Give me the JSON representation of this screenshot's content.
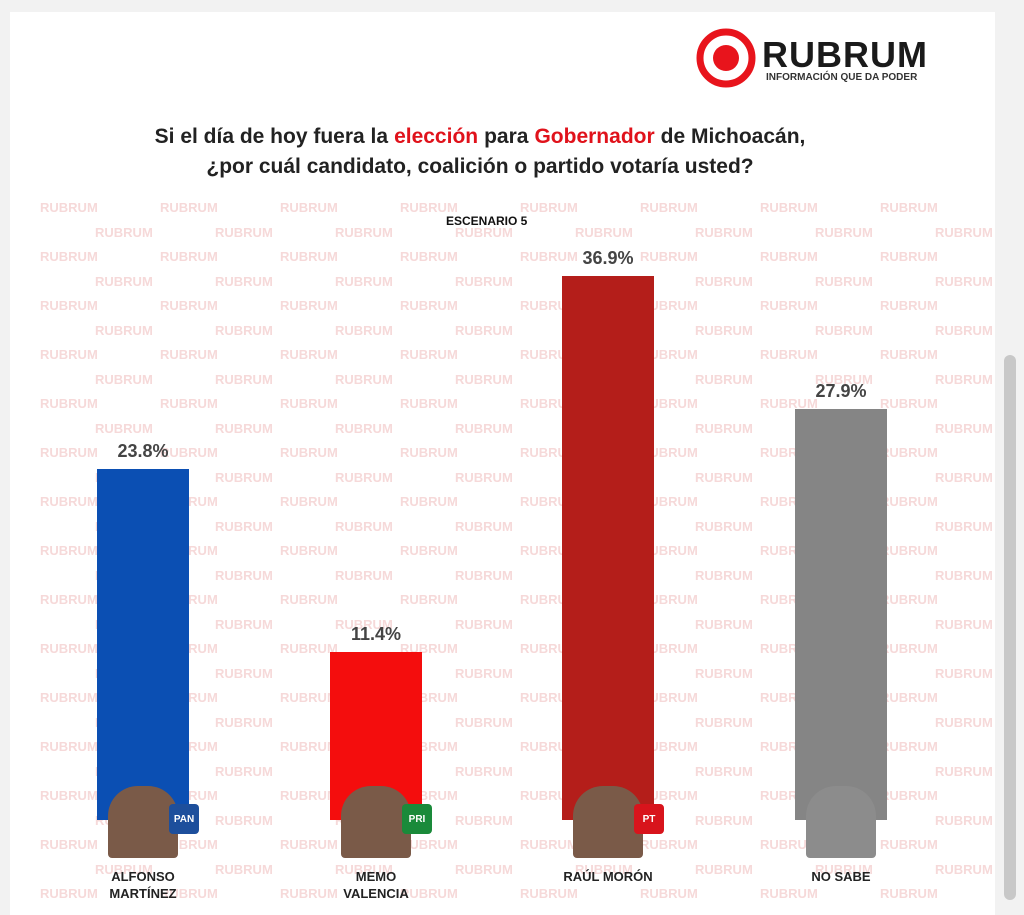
{
  "brand": {
    "name": "RUBRUM",
    "tagline": "INFORMACIÓN QUE DA PODER"
  },
  "watermark": "RUBRUM",
  "badges": [
    "PAN",
    "PRI",
    "PT"
  ],
  "chart_data": {
    "type": "bar",
    "title": [
      "Si el día de hoy fuera la",
      "elección",
      "para",
      "Gobernador",
      "de Michoacán,",
      "¿por cuál candidato, coalición o partido votaría usted?"
    ],
    "subtitle": "ESCENARIO 5",
    "categories": [
      "ALFONSO MARTÍNEZ",
      "MEMO VALENCIA",
      "RAÚL MORÓN",
      "NO SABE"
    ],
    "values": [
      23.8,
      11.4,
      36.9,
      27.9
    ],
    "value_labels": [
      "23.8%",
      "11.4%",
      "36.9%",
      "27.9%"
    ],
    "colors": [
      "#0b4fb3",
      "#f40d0d",
      "#b41e1a",
      "#858585"
    ]
  }
}
